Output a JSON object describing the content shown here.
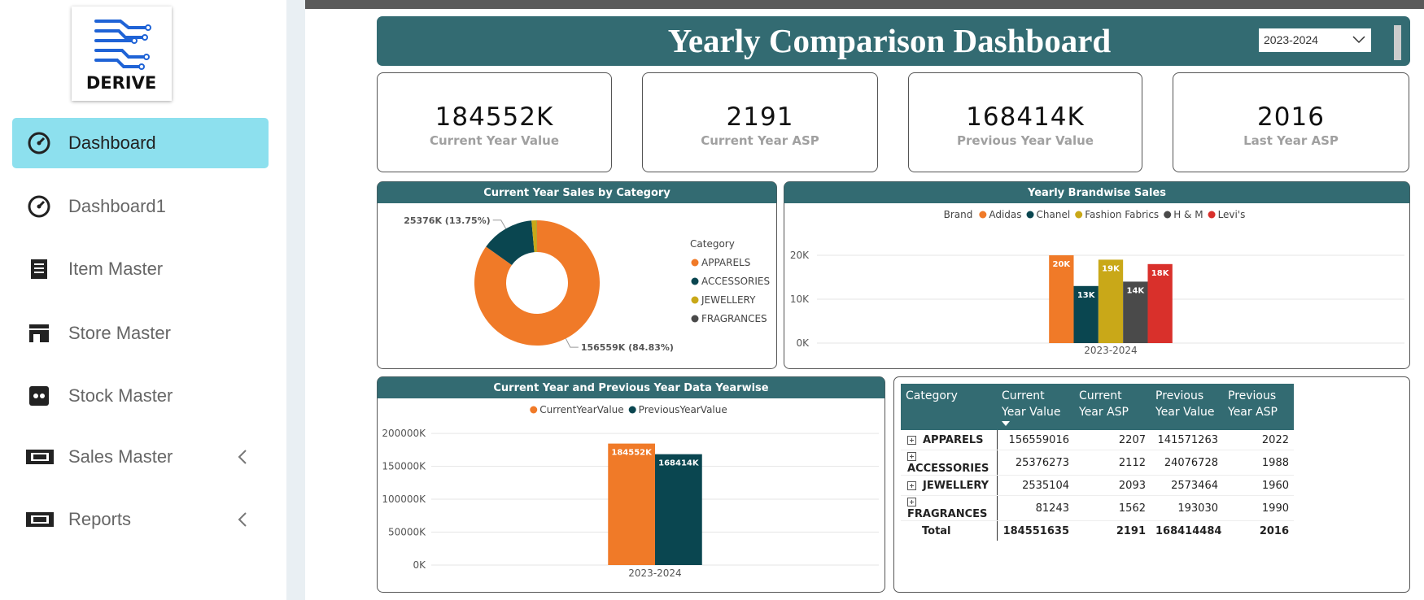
{
  "sidebar": {
    "logo": "DERIVE",
    "menu": [
      "Dashboard",
      "Dashboard1",
      "Item Master",
      "Store Master",
      "Stock Master",
      "Sales Master",
      "Reports"
    ]
  },
  "header": {
    "title": "Yearly Comparison Dashboard",
    "year_select": "2023-2024"
  },
  "kpis": [
    {
      "value": "184552K",
      "label": "Current Year Value"
    },
    {
      "value": "2191",
      "label": "Current Year ASP"
    },
    {
      "value": "168414K",
      "label": "Previous Year Value"
    },
    {
      "value": "2016",
      "label": "Last Year ASP"
    }
  ],
  "chart_data": [
    {
      "type": "pie",
      "title": "Current Year Sales by Category",
      "legend_title": "Category",
      "categories": [
        "APPARELS",
        "ACCESSORIES",
        "JEWELLERY",
        "FRAGRANCES"
      ],
      "values": [
        156559,
        25376,
        2535,
        81
      ],
      "value_labels": [
        "156559K (84.83%)",
        "25376K (13.75%)",
        null,
        null
      ],
      "colors": [
        "#f07a28",
        "#0a4650",
        "#c9a818",
        "#4a4a4a"
      ]
    },
    {
      "type": "bar",
      "title": "Yearly Brandwise Sales",
      "legend_title": "Brand",
      "categories": [
        "2023-2024"
      ],
      "series": [
        {
          "name": "Adidas",
          "color": "#f07a28",
          "values": [
            20
          ],
          "value_labels": [
            "20K"
          ]
        },
        {
          "name": "Chanel",
          "color": "#0a4650",
          "values": [
            13
          ],
          "value_labels": [
            "13K"
          ]
        },
        {
          "name": "Fashion Fabrics",
          "color": "#c9a818",
          "values": [
            19
          ],
          "value_labels": [
            "19K"
          ]
        },
        {
          "name": "H & M",
          "color": "#4a4a4a",
          "values": [
            14
          ],
          "value_labels": [
            "14K"
          ]
        },
        {
          "name": "Levi's",
          "color": "#d9302b",
          "values": [
            18
          ],
          "value_labels": [
            "18K"
          ]
        }
      ],
      "ylim": [
        0,
        25
      ],
      "yticks": [
        {
          "value": 0,
          "label": "0K"
        },
        {
          "value": 10,
          "label": "10K"
        },
        {
          "value": 20,
          "label": "20K"
        }
      ],
      "grid": true
    },
    {
      "type": "bar",
      "title": "Current Year and Previous Year Data Yearwise",
      "categories": [
        "2023-2024"
      ],
      "series": [
        {
          "name": "CurrentYearValue",
          "color": "#f07a28",
          "values": [
            184552
          ],
          "value_labels": [
            "184552K"
          ]
        },
        {
          "name": "PreviousYearValue",
          "color": "#0a4650",
          "values": [
            168414
          ],
          "value_labels": [
            "168414K"
          ]
        }
      ],
      "ylim": [
        0,
        210000
      ],
      "yticks": [
        {
          "value": 0,
          "label": "0K"
        },
        {
          "value": 50000,
          "label": "50000K"
        },
        {
          "value": 100000,
          "label": "100000K"
        },
        {
          "value": 150000,
          "label": "150000K"
        },
        {
          "value": 200000,
          "label": "200000K"
        }
      ],
      "grid": true
    }
  ],
  "table": {
    "columns": [
      "Category",
      "Current Year Value",
      "Current Year ASP",
      "Previous Year Value",
      "Previous Year ASP"
    ],
    "rows": [
      [
        "APPARELS",
        156559016,
        2207,
        141571263,
        2022
      ],
      [
        "ACCESSORIES",
        25376273,
        2112,
        24076728,
        1988
      ],
      [
        "JEWELLERY",
        2535104,
        2093,
        2573464,
        1960
      ],
      [
        "FRAGRANCES",
        81243,
        1562,
        193030,
        1990
      ]
    ],
    "total": [
      "Total",
      184551635,
      2191,
      168414484,
      2016
    ]
  }
}
